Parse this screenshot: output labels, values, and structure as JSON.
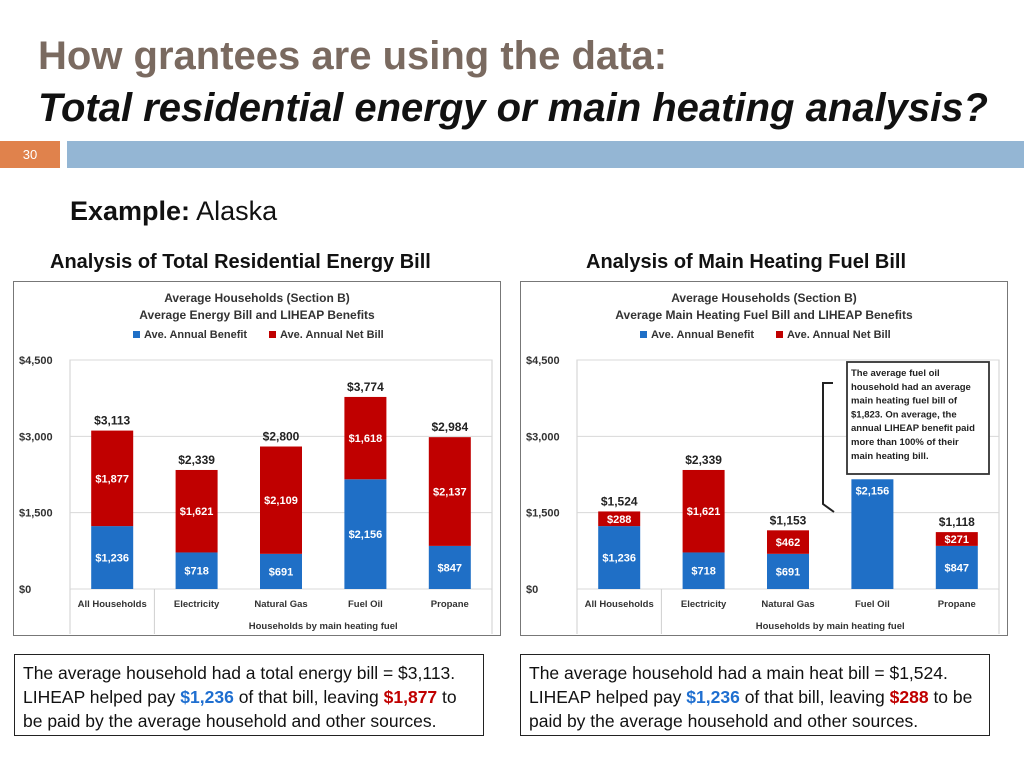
{
  "slide": {
    "title_line1": "How grantees are using the data:",
    "title_line2": "Total residential energy or main heating analysis?",
    "page_number": "30",
    "example_label": "Example:",
    "example_value": "Alaska"
  },
  "colors": {
    "benefit": "#1f6fc6",
    "net": "#c00000",
    "accent": "#e0824c",
    "bar": "#94b6d4"
  },
  "left": {
    "heading": "Analysis of Total Residential Energy Bill",
    "caption": {
      "line1": "The average household had a total energy bill = $3,113.",
      "p1": "LIHEAP helped pay ",
      "benefit": "$1,236",
      "p2": " of that bill, leaving ",
      "net": "$1,877",
      "p3": " to be paid by the average household and other sources."
    }
  },
  "right": {
    "heading": "Analysis of Main Heating Fuel Bill",
    "caption": {
      "line1": "The average household had a main heat bill = $1,524.",
      "p1": "LIHEAP helped pay ",
      "benefit": "$1,236",
      "p2": " of that bill, leaving ",
      "net": "$288",
      "p3": " to be paid by the average household and other sources."
    }
  },
  "chart_data": [
    {
      "type": "bar",
      "stacked": true,
      "title": [
        "Average Households (Section B)",
        "Average Energy Bill and LIHEAP Benefits"
      ],
      "categories": [
        "All Households",
        "Electricity",
        "Natural Gas",
        "Fuel Oil",
        "Propane"
      ],
      "xlabel": "Households by main heating fuel",
      "ylim": [
        0,
        4500
      ],
      "yticks": [
        0,
        1500,
        3000,
        4500
      ],
      "ytick_labels": [
        "$0",
        "$1,500",
        "$3,000",
        "$4,500"
      ],
      "legend_position": "top",
      "series": [
        {
          "name": "Ave. Annual Benefit",
          "values": [
            1236,
            718,
            691,
            2156,
            847
          ],
          "labels": [
            "$1,236",
            "$718",
            "$691",
            "$2,156",
            "$847"
          ]
        },
        {
          "name": "Ave. Annual Net Bill",
          "values": [
            1877,
            1621,
            2109,
            1618,
            2137
          ],
          "labels": [
            "$1,877",
            "$1,621",
            "$2,109",
            "$1,618",
            "$2,137"
          ]
        }
      ],
      "totals": [
        "$3,113",
        "$2,339",
        "$2,800",
        "$3,774",
        "$2,984"
      ],
      "annotation": ""
    },
    {
      "type": "bar",
      "stacked": true,
      "title": [
        "Average Households (Section B)",
        "Average Main Heating Fuel Bill and LIHEAP Benefits"
      ],
      "categories": [
        "All Households",
        "Electricity",
        "Natural Gas",
        "Fuel Oil",
        "Propane"
      ],
      "xlabel": "Households by main heating fuel",
      "ylim": [
        0,
        4500
      ],
      "yticks": [
        0,
        1500,
        3000,
        4500
      ],
      "ytick_labels": [
        "$0",
        "$1,500",
        "$3,000",
        "$4,500"
      ],
      "legend_position": "top",
      "series": [
        {
          "name": "Ave. Annual Benefit",
          "values": [
            1236,
            718,
            691,
            2156,
            847
          ],
          "labels": [
            "$1,236",
            "$718",
            "$691",
            "$2,156",
            "$847"
          ]
        },
        {
          "name": "Ave. Annual Net Bill",
          "values": [
            288,
            1621,
            462,
            0,
            271
          ],
          "labels": [
            "$288",
            "$1,621",
            "$462",
            "",
            "$271"
          ]
        }
      ],
      "totals": [
        "$1,524",
        "$2,339",
        "$1,153",
        "",
        "$1,118"
      ],
      "annotation": "The average fuel oil household had an average main heating fuel bill of $1,823. On average, the annual LIHEAP benefit paid more than 100% of their main heating bill."
    }
  ]
}
